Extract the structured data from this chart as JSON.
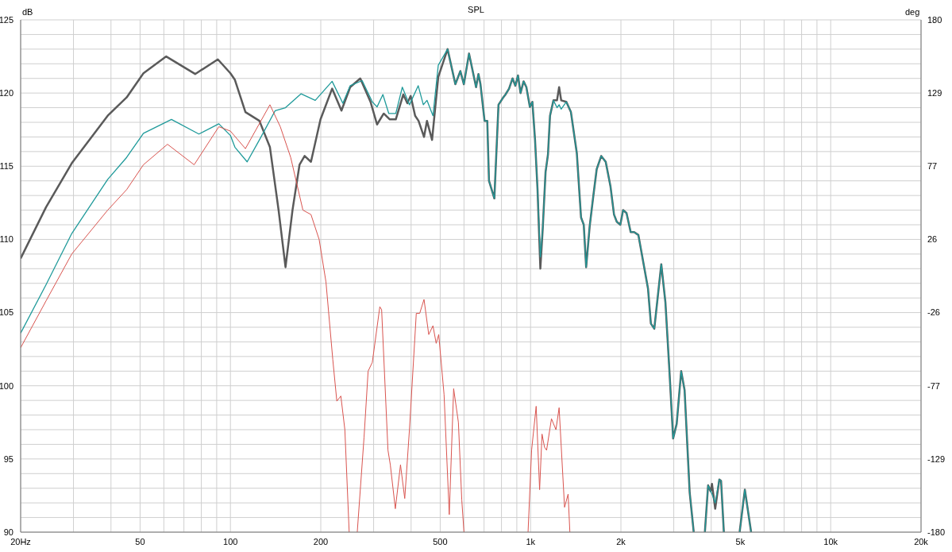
{
  "chart_data": {
    "type": "line",
    "title": "SPL",
    "ylabel": "dB",
    "y2label": "deg",
    "xlim": [
      20,
      20000
    ],
    "log": "x",
    "xticks": [
      {
        "value": 20,
        "label": "20Hz"
      },
      {
        "value": 30,
        "label": null
      },
      {
        "value": 40,
        "label": null
      },
      50,
      {
        "value": 60,
        "label": null
      },
      {
        "value": 70,
        "label": null
      },
      {
        "value": 80,
        "label": null
      },
      {
        "value": 90,
        "label": null
      },
      100,
      200,
      {
        "value": 300,
        "label": null
      },
      {
        "value": 400,
        "label": null
      },
      500,
      {
        "value": 600,
        "label": null
      },
      {
        "value": 700,
        "label": null
      },
      {
        "value": 800,
        "label": null
      },
      {
        "value": 900,
        "label": null
      },
      {
        "value": 1000,
        "label": "1k"
      },
      {
        "value": 2000,
        "label": "2k"
      },
      {
        "value": 3000,
        "label": null
      },
      {
        "value": 4000,
        "label": null
      },
      {
        "value": 5000,
        "label": "5k"
      },
      {
        "value": 6000,
        "label": null
      },
      {
        "value": 7000,
        "label": null
      },
      {
        "value": 8000,
        "label": null
      },
      {
        "value": 9000,
        "label": null
      },
      {
        "value": 10000,
        "label": "10k"
      },
      {
        "value": 20000,
        "label": "20k"
      }
    ],
    "ylim": [
      90,
      125
    ],
    "yticks": [
      90,
      {
        "value": 91,
        "label": null
      },
      {
        "value": 92,
        "label": null
      },
      {
        "value": 93,
        "label": null
      },
      {
        "value": 94,
        "label": null
      },
      95,
      {
        "value": 96,
        "label": null
      },
      {
        "value": 97,
        "label": null
      },
      {
        "value": 98,
        "label": null
      },
      {
        "value": 99,
        "label": null
      },
      100,
      {
        "value": 101,
        "label": null
      },
      {
        "value": 102,
        "label": null
      },
      {
        "value": 103,
        "label": null
      },
      {
        "value": 104,
        "label": null
      },
      105,
      {
        "value": 106,
        "label": null
      },
      {
        "value": 107,
        "label": null
      },
      {
        "value": 108,
        "label": null
      },
      {
        "value": 109,
        "label": null
      },
      110,
      {
        "value": 111,
        "label": null
      },
      {
        "value": 112,
        "label": null
      },
      {
        "value": 113,
        "label": null
      },
      {
        "value": 114,
        "label": null
      },
      115,
      {
        "value": 116,
        "label": null
      },
      {
        "value": 117,
        "label": null
      },
      {
        "value": 118,
        "label": null
      },
      {
        "value": 119,
        "label": null
      },
      120,
      {
        "value": 121,
        "label": null
      },
      {
        "value": 122,
        "label": null
      },
      {
        "value": 123,
        "label": null
      },
      {
        "value": 124,
        "label": null
      },
      125
    ],
    "y2lim": [
      -180,
      180
    ],
    "y2ticks": [
      -180,
      {
        "value": -128.571,
        "label": "-129"
      },
      {
        "value": -77.143,
        "label": "-77"
      },
      {
        "value": -25.714,
        "label": "-26"
      },
      {
        "value": 25.714,
        "label": "26"
      },
      {
        "value": 77.143,
        "label": "77"
      },
      {
        "value": 128.571,
        "label": "129"
      },
      180
    ],
    "grid": true,
    "marker": "none",
    "line_style": "solid",
    "series": [
      {
        "color": "#5a5a5a",
        "x": [
          20,
          24.3,
          29.6,
          39,
          45.1,
          51.3,
          61.1,
          76.3,
          90.8,
          100,
          103.5,
          112.2,
          124.9,
          135.4,
          144.7,
          152.6,
          161,
          169.9,
          176.7,
          185.5,
          199.6,
          218.2,
          234.4,
          250.6,
          270.8,
          292.9,
          308,
          324.2,
          339.6,
          355.6,
          376.7,
          388.6,
          398.6,
          412.5,
          423.4,
          441.6,
          451.7,
          469.7,
          492.6,
          529.1,
          561.6,
          583.6,
          599.5,
          623.8,
          658.4,
          670.5,
          681,
          702.6,
          717.4,
          727,
          757.5,
          782,
          808,
          825,
          848,
          871,
          890,
          908,
          926,
          948,
          968.5,
          994.7,
          1014,
          1035,
          1055,
          1078,
          1098,
          1122,
          1143,
          1161,
          1192,
          1225,
          1245,
          1265,
          1316,
          1363,
          1426,
          1473,
          1504,
          1532,
          1574,
          1617,
          1661,
          1720,
          1780,
          1847,
          1897,
          1938,
          1991,
          2034,
          2088,
          2156,
          2214,
          2287,
          2367,
          2462,
          2517,
          2584,
          2726,
          2814,
          2895,
          2986,
          3068,
          3176,
          3260,
          3390,
          3497,
          3650,
          3809,
          3905,
          3980,
          4022,
          4123,
          4256,
          4313,
          4406,
          4700,
          4973,
          5176,
          5431
        ],
        "values": [
          108.7,
          112.2,
          115.2,
          118.45,
          119.7,
          121.35,
          122.5,
          121.3,
          122.3,
          121.35,
          120.9,
          118.7,
          118.1,
          116.3,
          112.0,
          108.1,
          112.0,
          115.1,
          115.7,
          115.3,
          118.2,
          120.3,
          118.8,
          120.4,
          121.0,
          119.4,
          117.85,
          118.6,
          118.2,
          118.2,
          119.9,
          119.3,
          119.8,
          118.45,
          118.1,
          117.0,
          118.1,
          116.8,
          121.1,
          123.0,
          120.6,
          121.5,
          120.6,
          122.7,
          120.4,
          121.3,
          120.6,
          118.1,
          118.1,
          114.0,
          112.8,
          119.2,
          119.65,
          119.9,
          120.3,
          121.0,
          120.5,
          121.2,
          120.0,
          120.8,
          120.4,
          119.05,
          119.4,
          116.8,
          113.4,
          108.0,
          110.75,
          114.6,
          115.8,
          118.45,
          119.5,
          119.5,
          120.4,
          119.5,
          119.4,
          118.7,
          115.9,
          111.5,
          111.0,
          108.1,
          110.9,
          112.9,
          114.8,
          115.7,
          115.3,
          113.6,
          111.7,
          111.2,
          111.0,
          112.0,
          111.8,
          110.5,
          110.5,
          110.3,
          108.6,
          106.65,
          104.25,
          103.9,
          108.3,
          105.7,
          101.4,
          96.4,
          97.4,
          101.0,
          99.7,
          92.7,
          90,
          null,
          90,
          93.2,
          92.8,
          93.3,
          91.6,
          93.6,
          93.5,
          90,
          null,
          90,
          92.9,
          90
        ]
      },
      {
        "color": "#1f9a9a",
        "x": [
          20,
          24.3,
          29.6,
          39,
          45.1,
          51.3,
          63.6,
          78.5,
          91.5,
          100,
          103.5,
          113.7,
          124.9,
          141,
          152.6,
          172,
          191.7,
          218.2,
          236.9,
          250.6,
          274.7,
          297,
          308,
          322.1,
          337,
          355.6,
          373.9,
          394.9,
          422.3,
          439.3,
          451.7,
          473,
          492.6,
          529.1,
          561.6,
          583.6,
          599.5,
          623.8,
          658.4,
          670.5,
          681,
          702.6,
          717.4,
          727,
          757.5,
          782,
          808,
          825,
          848,
          871,
          890,
          908,
          926,
          948,
          968.5,
          994.7,
          1014,
          1035,
          1055,
          1078,
          1098,
          1122,
          1143,
          1161,
          1192,
          1225,
          1245,
          1265,
          1316,
          1363,
          1426,
          1473,
          1504,
          1532,
          1574,
          1617,
          1661,
          1720,
          1780,
          1847,
          1897,
          1938,
          1991,
          2034,
          2088,
          2156,
          2214,
          2287,
          2367,
          2462,
          2517,
          2584,
          2726,
          2814,
          2895,
          2986,
          3068,
          3176,
          3260,
          3390,
          3497,
          3650,
          3809,
          3905,
          3980,
          4022,
          4123,
          4256,
          4313,
          4406,
          4700,
          4973,
          5176,
          5431
        ],
        "values": [
          103.6,
          106.9,
          110.4,
          114.1,
          115.6,
          117.25,
          118.2,
          117.2,
          117.9,
          117.1,
          116.3,
          115.3,
          116.8,
          118.8,
          119.0,
          119.95,
          119.5,
          120.8,
          119.3,
          120.5,
          120.85,
          119.4,
          119.05,
          119.9,
          118.6,
          118.6,
          120.4,
          119.2,
          120.5,
          119.2,
          119.5,
          118.45,
          121.9,
          123.0,
          120.6,
          121.5,
          120.6,
          122.7,
          120.4,
          121.3,
          120.6,
          118.1,
          118.1,
          114.0,
          112.8,
          119.2,
          119.65,
          119.9,
          120.3,
          121.0,
          120.5,
          121.2,
          120.0,
          120.8,
          120.4,
          119.05,
          119.4,
          116.8,
          113.4,
          108.8,
          110.75,
          114.6,
          115.8,
          118.45,
          119.5,
          119.0,
          119.2,
          118.9,
          119.4,
          118.7,
          115.9,
          111.5,
          111.0,
          108.1,
          110.9,
          112.9,
          114.8,
          115.7,
          115.3,
          113.6,
          111.7,
          111.2,
          111.0,
          112.0,
          111.8,
          110.5,
          110.5,
          110.3,
          108.6,
          106.65,
          104.25,
          103.9,
          108.3,
          105.7,
          101.4,
          96.4,
          97.4,
          101.0,
          99.7,
          92.7,
          90,
          null,
          90,
          93.2,
          92.8,
          92.6,
          92.0,
          93.6,
          93.5,
          90,
          null,
          90,
          92.9,
          90
        ]
      },
      {
        "color": "#d9544f",
        "x": [
          20,
          24.3,
          29.6,
          39,
          45.1,
          51.3,
          61.7,
          75.7,
          91.5,
          100,
          112.2,
          135.4,
          146.6,
          158.8,
          174.4,
          185.5,
          197.5,
          208.1,
          219.3,
          226.2,
          233.3,
          240.6,
          248.7,
          256,
          264.6,
          278.8,
          287.6,
          297,
          314.6,
          319,
          334.9,
          341,
          354.4,
          368.7,
          380.9,
          394.9,
          416.2,
          427.2,
          441.6,
          457.9,
          473,
          484.8,
          494.4,
          515,
          536,
          554.3,
          574.9,
          590,
          600,
          800,
          981,
          1008,
          1044,
          1072,
          1092,
          1113,
          1131,
          1174,
          1215,
          1245,
          1298,
          1334,
          1352
        ],
        "values": [
          102.6,
          105.8,
          109.0,
          112.0,
          113.4,
          115.1,
          116.5,
          115.1,
          117.7,
          117.4,
          116.2,
          119.2,
          117.7,
          115.6,
          112.0,
          111.7,
          110.0,
          107.1,
          101.8,
          98.95,
          99.3,
          97.0,
          90,
          null,
          90,
          96.5,
          101.0,
          101.6,
          105.4,
          105.2,
          95.6,
          94.6,
          91.6,
          94.6,
          92.3,
          97.0,
          104.95,
          104.95,
          105.9,
          103.5,
          104.1,
          102.9,
          103.5,
          99.4,
          91.2,
          99.8,
          97.5,
          92.2,
          90,
          null,
          90,
          95.6,
          98.6,
          92.9,
          96.7,
          95.8,
          95.6,
          97.75,
          97.0,
          98.5,
          91.7,
          92.6,
          90
        ]
      }
    ]
  }
}
